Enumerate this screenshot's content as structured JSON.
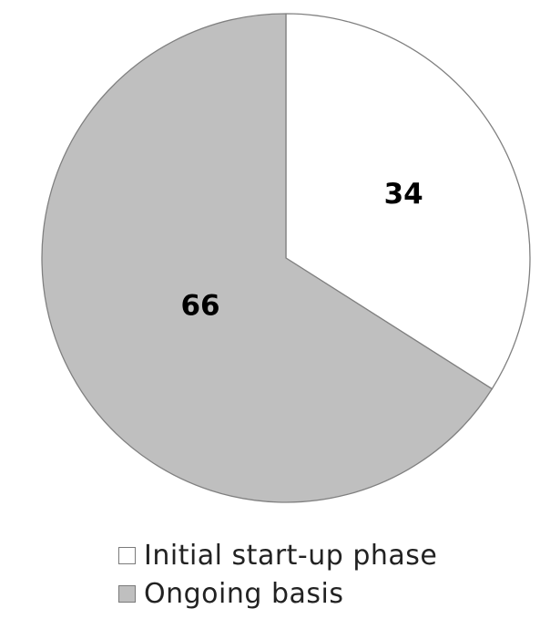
{
  "chart_data": {
    "type": "pie",
    "title": "",
    "categories": [
      "Initial start-up phase",
      "Ongoing basis"
    ],
    "values": [
      34,
      66
    ],
    "colors": [
      "#ffffff",
      "#bfbfbf"
    ],
    "edge_color": "#808080",
    "start_angle_deg": 0,
    "direction": "clockwise",
    "legend_position": "bottom",
    "data_labels": [
      "34",
      "66"
    ]
  }
}
